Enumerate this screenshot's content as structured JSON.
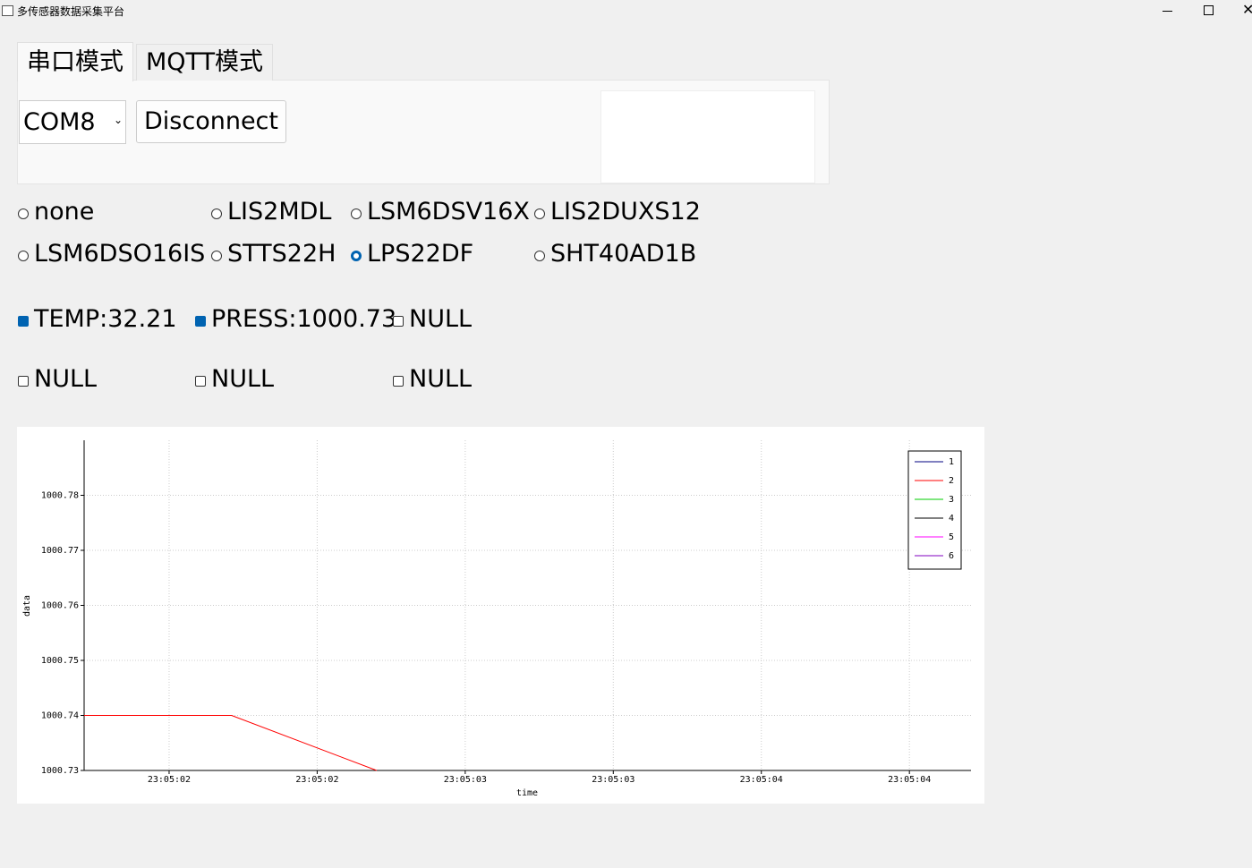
{
  "window": {
    "title": "多传感器数据采集平台"
  },
  "tabs": [
    {
      "label": "串口模式",
      "active": true
    },
    {
      "label": "MQTT模式",
      "active": false
    }
  ],
  "port": "COM8",
  "button": "Disconnect",
  "sensors": [
    {
      "label": "none",
      "selected": false
    },
    {
      "label": "LIS2MDL",
      "selected": false
    },
    {
      "label": "LSM6DSV16X",
      "selected": false
    },
    {
      "label": "LIS2DUXS12",
      "selected": false
    },
    {
      "label": "LSM6DSO16IS",
      "selected": false
    },
    {
      "label": "STTS22H",
      "selected": false
    },
    {
      "label": "LPS22DF",
      "selected": true
    },
    {
      "label": "SHT40AD1B",
      "selected": false
    }
  ],
  "channels": [
    {
      "label": "TEMP:32.21",
      "checked": true
    },
    {
      "label": "PRESS:1000.73",
      "checked": true
    },
    {
      "label": "NULL",
      "checked": false
    },
    {
      "label": "NULL",
      "checked": false
    },
    {
      "label": "NULL",
      "checked": false
    },
    {
      "label": "NULL",
      "checked": false
    }
  ],
  "chart_data": {
    "type": "line",
    "x_label": "time",
    "y_label": "data",
    "xlim": [
      1.713,
      4.708
    ],
    "xticks": [
      {
        "value": 2.0,
        "label": "23:05:02"
      },
      {
        "value": 2.5,
        "label": "23:05:02"
      },
      {
        "value": 3.0,
        "label": "23:05:03"
      },
      {
        "value": 3.5,
        "label": "23:05:03"
      },
      {
        "value": 4.0,
        "label": "23:05:04"
      },
      {
        "value": 4.5,
        "label": "23:05:04"
      }
    ],
    "ylim": [
      1000.73,
      1000.79
    ],
    "yticks": [
      1000.73,
      1000.74,
      1000.75,
      1000.76,
      1000.77,
      1000.78
    ],
    "grid": true,
    "legend": "upper right",
    "series": [
      {
        "name": "1",
        "color": "#000080",
        "x": [],
        "values": []
      },
      {
        "name": "2",
        "color": "#ff0000",
        "x": [
          1.713,
          2.211,
          2.701
        ],
        "values": [
          1000.74,
          1000.74,
          1000.73
        ]
      },
      {
        "name": "3",
        "color": "#00cc00",
        "x": [],
        "values": []
      },
      {
        "name": "4",
        "color": "#000000",
        "x": [],
        "values": []
      },
      {
        "name": "5",
        "color": "#ff00ff",
        "x": [],
        "values": []
      },
      {
        "name": "6",
        "color": "#8000c0",
        "x": [],
        "values": []
      }
    ]
  }
}
